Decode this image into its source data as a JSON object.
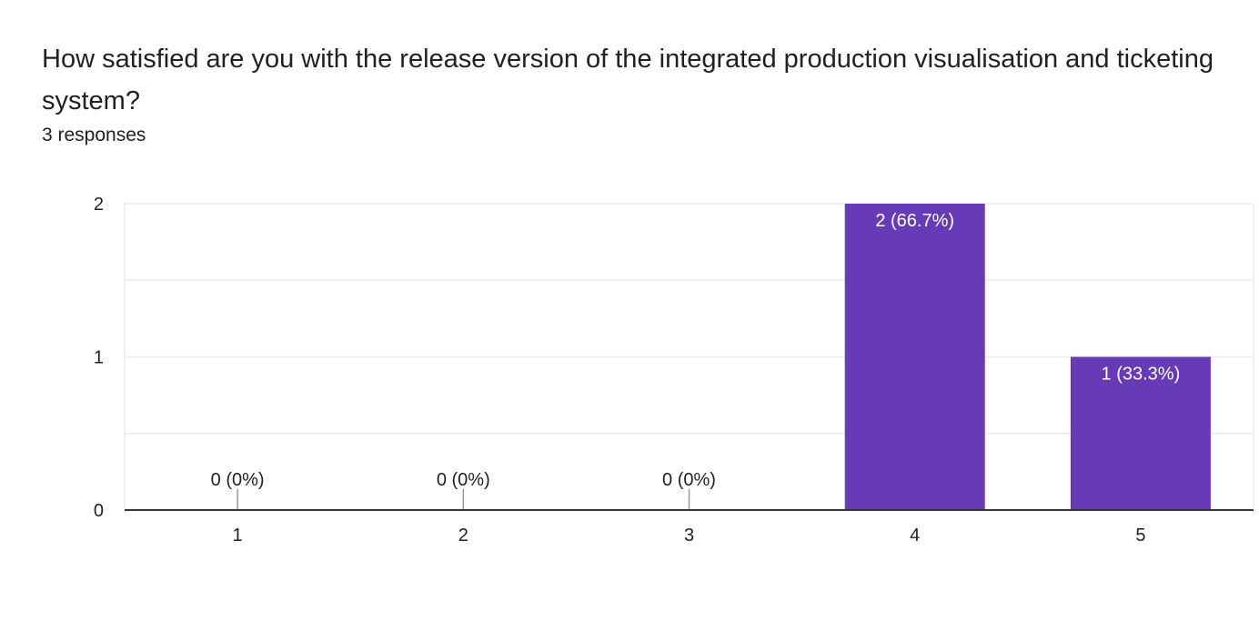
{
  "header": {
    "title": "How satisfied are you with the release version of the integrated production visualisation and ticketing system?",
    "response_count": "3 responses"
  },
  "colors": {
    "bar": "#673ab7",
    "grid": "#ebebeb",
    "baseline": "#333333",
    "label_inside": "#ffffff",
    "label_outside": "#222222"
  },
  "chart_data": {
    "type": "bar",
    "title": "How satisfied are you with the release version of the integrated production visualisation and ticketing system?",
    "subtitle": "3 responses",
    "xlabel": "",
    "ylabel": "",
    "categories": [
      "1",
      "2",
      "3",
      "4",
      "5"
    ],
    "values": [
      0,
      0,
      0,
      2,
      1
    ],
    "data_labels": [
      "0 (0%)",
      "0 (0%)",
      "0 (0%)",
      "2 (66.7%)",
      "1 (33.3%)"
    ],
    "ylim": [
      0,
      2
    ],
    "yticks": [
      "0",
      "1",
      "2"
    ],
    "grid": true,
    "legend": "none"
  }
}
